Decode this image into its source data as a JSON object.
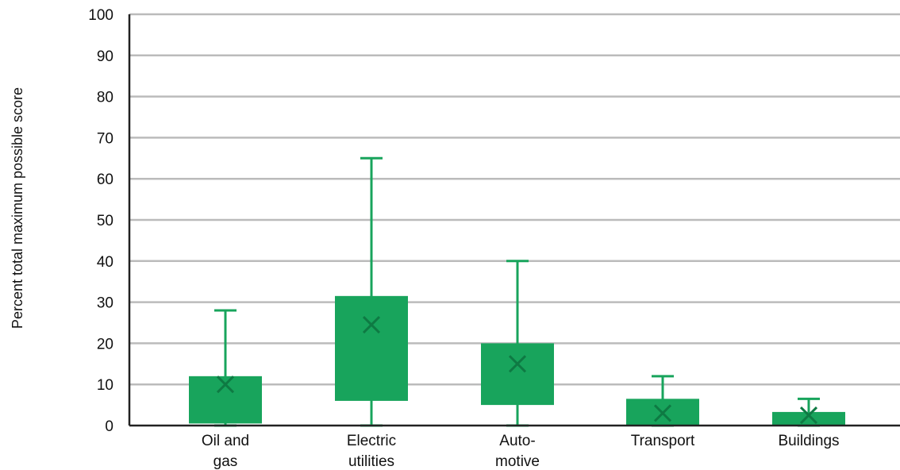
{
  "chart_data": {
    "type": "box",
    "ylabel": "Percent total maximum possible score",
    "ylim": [
      0,
      100
    ],
    "yticks": [
      "0",
      "10",
      "20",
      "30",
      "40",
      "50",
      "60",
      "70",
      "80",
      "90",
      "100"
    ],
    "grid": true,
    "colors": {
      "box": "#18A45C",
      "mean_marker": "#0E7A43",
      "grid": "#BBBBBB",
      "axis": "#222222"
    },
    "categories": [
      {
        "label": [
          "Oil and",
          "gas"
        ],
        "min": 0,
        "q1": 0.5,
        "q3": 12,
        "max": 28,
        "mean": 10
      },
      {
        "label": [
          "Electric",
          "utilities"
        ],
        "min": 0,
        "q1": 6,
        "q3": 31.5,
        "max": 65,
        "mean": 24.5
      },
      {
        "label": [
          "Auto-",
          "motive"
        ],
        "min": 0,
        "q1": 5,
        "q3": 20,
        "max": 40,
        "mean": 15
      },
      {
        "label": [
          "Transport"
        ],
        "min": 0,
        "q1": 0,
        "q3": 6.5,
        "max": 12,
        "mean": 3
      },
      {
        "label": [
          "Buildings"
        ],
        "min": 0,
        "q1": 0,
        "q3": 3.3,
        "max": 6.5,
        "mean": 2.5
      }
    ]
  }
}
